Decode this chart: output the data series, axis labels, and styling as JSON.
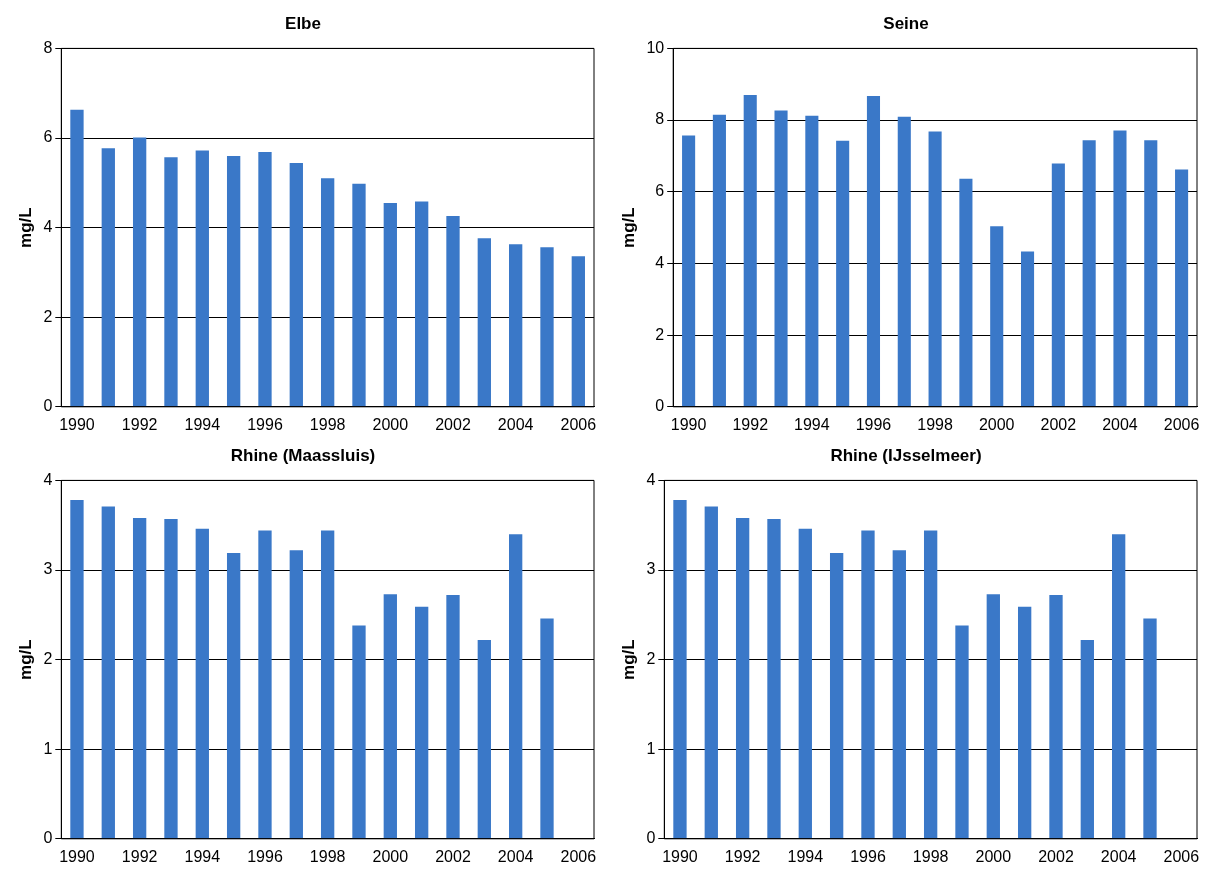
{
  "chart_data": [
    {
      "type": "bar",
      "title": "Elbe",
      "ylabel": "mg/L",
      "categories": [
        "1990",
        null,
        "1992",
        null,
        "1994",
        null,
        "1996",
        null,
        "1998",
        null,
        "2000",
        null,
        "2002",
        null,
        "2004",
        null,
        "2006"
      ],
      "values": [
        6.63,
        5.77,
        6.01,
        5.57,
        5.72,
        5.6,
        5.69,
        5.44,
        5.1,
        4.98,
        4.55,
        4.58,
        4.26,
        3.76,
        3.63,
        3.56,
        3.36
      ],
      "color": "#3a78c8",
      "ylim": [
        0,
        8
      ],
      "yticks": [
        0,
        2,
        4,
        6,
        8
      ],
      "grid": "y"
    },
    {
      "type": "bar",
      "title": "Seine",
      "ylabel": "mg/L",
      "categories": [
        "1990",
        null,
        "1992",
        null,
        "1994",
        null,
        "1996",
        null,
        "1998",
        null,
        "2000",
        null,
        "2002",
        null,
        "2004",
        null,
        "2006"
      ],
      "values": [
        7.57,
        8.15,
        8.7,
        8.27,
        8.12,
        7.42,
        8.67,
        8.09,
        7.68,
        6.36,
        5.04,
        4.33,
        6.79,
        7.44,
        7.71,
        7.44,
        6.62
      ],
      "color": "#3a78c8",
      "ylim": [
        0,
        10
      ],
      "yticks": [
        0,
        2,
        4,
        6,
        8,
        10
      ],
      "grid": "y"
    },
    {
      "type": "bar",
      "title": "Rhine (Maassluis)",
      "ylabel": "mg/L",
      "categories": [
        "1990",
        null,
        "1992",
        null,
        "1994",
        null,
        "1996",
        null,
        "1998",
        null,
        "2000",
        null,
        "2002",
        null,
        "2004",
        null,
        "2006"
      ],
      "values": [
        3.78,
        3.71,
        3.58,
        3.57,
        3.46,
        3.19,
        3.44,
        3.22,
        3.44,
        2.38,
        2.73,
        2.59,
        2.72,
        2.22,
        3.4,
        2.46,
        null
      ],
      "color": "#3a78c8",
      "ylim": [
        0,
        4
      ],
      "yticks": [
        0,
        1,
        2,
        3,
        4
      ],
      "grid": "y"
    },
    {
      "type": "bar",
      "title": "Rhine (IJsselmeer)",
      "ylabel": "mg/L",
      "categories": [
        "1990",
        null,
        "1992",
        null,
        "1994",
        null,
        "1996",
        null,
        "1998",
        null,
        "2000",
        null,
        "2002",
        null,
        "2004",
        null,
        "2006"
      ],
      "values": [
        3.78,
        3.71,
        3.58,
        3.57,
        3.46,
        3.19,
        3.44,
        3.22,
        3.44,
        2.38,
        2.73,
        2.59,
        2.72,
        2.22,
        3.4,
        2.46,
        null
      ],
      "color": "#3a78c8",
      "ylim": [
        0,
        4
      ],
      "yticks": [
        0,
        1,
        2,
        3,
        4
      ],
      "grid": "y"
    }
  ]
}
